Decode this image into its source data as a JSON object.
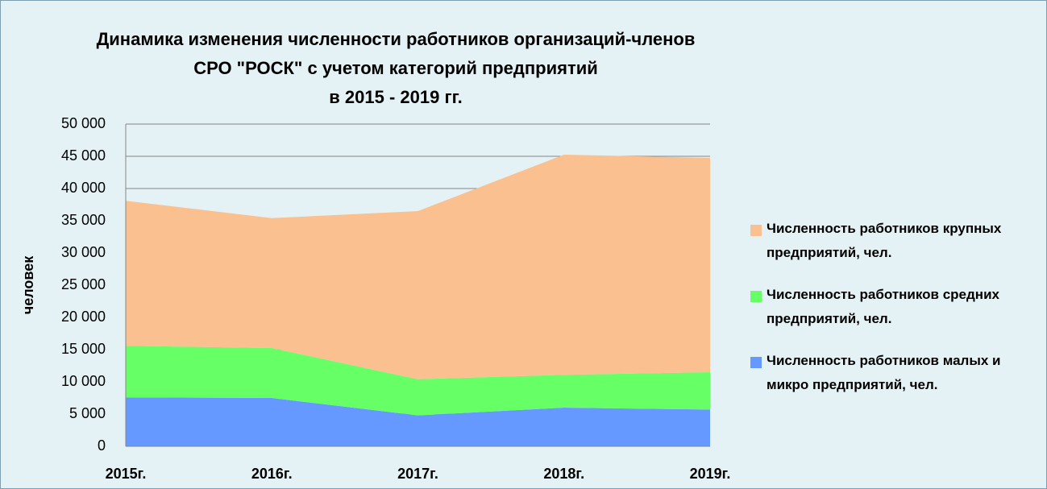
{
  "chart_data": {
    "type": "stacked_area",
    "title": "Динамика изменения численности работников организаций-членов\nСРО \"РОСК\" с учетом категорий предприятий\nв 2015 - 2019 гг.",
    "y_label": "человек",
    "categories": [
      "2015г.",
      "2016г.",
      "2017г.",
      "2018г.",
      "2019г."
    ],
    "series": [
      {
        "name": "Численность работников малых и микро предприятий, чел.",
        "color": "#6699ff",
        "values": [
          7600,
          7500,
          4800,
          6000,
          5700
        ]
      },
      {
        "name": "Численность работников средних предприятий, чел.",
        "color": "#66ff66",
        "values": [
          8000,
          7750,
          5600,
          5100,
          5800
        ]
      },
      {
        "name": "Численность работников крупных предприятий, чел.",
        "color": "#fac090",
        "values": [
          22500,
          20150,
          26100,
          34150,
          33250
        ]
      }
    ],
    "ylim": [
      0,
      50000
    ],
    "yticks": [
      0,
      {
        "value": 5000,
        "label": "5 000"
      },
      {
        "value": 10000,
        "label": "10 000"
      },
      {
        "value": 15000,
        "label": "15 000"
      },
      {
        "value": 20000,
        "label": "20 000"
      },
      {
        "value": 25000,
        "label": "25 000"
      },
      {
        "value": 30000,
        "label": "30 000"
      },
      {
        "value": 35000,
        "label": "35 000"
      },
      {
        "value": 40000,
        "label": "40 000"
      },
      {
        "value": 45000,
        "label": "45 000"
      },
      {
        "value": 50000,
        "label": "50 000"
      }
    ],
    "grid": true,
    "legend": "right"
  }
}
